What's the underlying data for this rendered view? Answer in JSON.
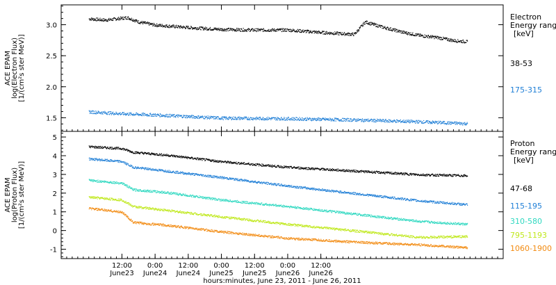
{
  "chart_data": [
    {
      "type": "scatter",
      "ylabel_lines": [
        "ACE EPAM",
        "log(Electron Flux)",
        "[1/(cm²s ster MeV)]"
      ],
      "ylim": [
        1.28,
        3.32
      ],
      "yticks": [
        1.5,
        2.0,
        2.5,
        3.0
      ],
      "ytick_labels": [
        "1.5",
        "2.0",
        "2.5",
        "3.0"
      ],
      "legend_title": [
        "Electron",
        "Energy range",
        "[keV]"
      ],
      "series": [
        {
          "name": "38-53",
          "color": "#000000",
          "points": [
            [
              0,
              3.1
            ],
            [
              6,
              3.08
            ],
            [
              14,
              3.12
            ],
            [
              18,
              3.05
            ],
            [
              24,
              3.0
            ],
            [
              36,
              2.96
            ],
            [
              48,
              2.93
            ],
            [
              60,
              2.92
            ],
            [
              72,
              2.92
            ],
            [
              84,
              2.88
            ],
            [
              96,
              2.85
            ],
            [
              100,
              3.05
            ],
            [
              106,
              2.97
            ],
            [
              114,
              2.88
            ],
            [
              120,
              2.83
            ],
            [
              126,
              2.8
            ],
            [
              132,
              2.75
            ],
            [
              137,
              2.73
            ]
          ]
        },
        {
          "name": "175-315",
          "color": "#1e7ed6",
          "points": [
            [
              0,
              1.6
            ],
            [
              12,
              1.57
            ],
            [
              24,
              1.55
            ],
            [
              48,
              1.5
            ],
            [
              72,
              1.49
            ],
            [
              96,
              1.47
            ],
            [
              120,
              1.44
            ],
            [
              137,
              1.41
            ]
          ]
        }
      ]
    },
    {
      "type": "scatter",
      "ylabel_lines": [
        "ACE EPAM",
        "log(Proton Flux)",
        "[1/(cm²s ster MeV)]"
      ],
      "ylim": [
        -1.5,
        5.3
      ],
      "yticks": [
        -1,
        0,
        1,
        2,
        3,
        4,
        5
      ],
      "ytick_labels": [
        "-1",
        "0",
        "1",
        "2",
        "3",
        "4",
        "5"
      ],
      "legend_title": [
        "Proton",
        "Energy range",
        "[keV]"
      ],
      "series": [
        {
          "name": "47-68",
          "color": "#000000",
          "points": [
            [
              0,
              4.5
            ],
            [
              12,
              4.4
            ],
            [
              16,
              4.2
            ],
            [
              28,
              4.05
            ],
            [
              48,
              3.7
            ],
            [
              72,
              3.4
            ],
            [
              96,
              3.2
            ],
            [
              120,
              3.0
            ],
            [
              137,
              2.95
            ]
          ]
        },
        {
          "name": "115-195",
          "color": "#1e7ed6",
          "points": [
            [
              0,
              3.85
            ],
            [
              12,
              3.7
            ],
            [
              16,
              3.4
            ],
            [
              28,
              3.2
            ],
            [
              48,
              2.85
            ],
            [
              72,
              2.4
            ],
            [
              96,
              2.0
            ],
            [
              120,
              1.6
            ],
            [
              137,
              1.4
            ]
          ]
        },
        {
          "name": "310-580",
          "color": "#2ed8c0",
          "points": [
            [
              0,
              2.7
            ],
            [
              12,
              2.55
            ],
            [
              16,
              2.2
            ],
            [
              28,
              2.05
            ],
            [
              48,
              1.65
            ],
            [
              72,
              1.3
            ],
            [
              96,
              0.9
            ],
            [
              120,
              0.5
            ],
            [
              137,
              0.35
            ]
          ]
        },
        {
          "name": "795-1193",
          "color": "#bfe81a",
          "points": [
            [
              0,
              1.8
            ],
            [
              12,
              1.65
            ],
            [
              16,
              1.3
            ],
            [
              28,
              1.1
            ],
            [
              48,
              0.75
            ],
            [
              72,
              0.35
            ],
            [
              96,
              0.0
            ],
            [
              120,
              -0.35
            ],
            [
              137,
              -0.3
            ]
          ]
        },
        {
          "name": "1060-1900",
          "color": "#f28a10",
          "points": [
            [
              0,
              1.2
            ],
            [
              12,
              1.0
            ],
            [
              16,
              0.45
            ],
            [
              28,
              0.3
            ],
            [
              48,
              -0.05
            ],
            [
              72,
              -0.4
            ],
            [
              96,
              -0.6
            ],
            [
              120,
              -0.75
            ],
            [
              137,
              -0.9
            ]
          ]
        }
      ]
    }
  ],
  "xaxis": {
    "ticks": [
      {
        "top": "12:00",
        "bottom": "June23"
      },
      {
        "top": "0:00",
        "bottom": "June24"
      },
      {
        "top": "12:00",
        "bottom": "June24"
      },
      {
        "top": "0:00",
        "bottom": "June25"
      },
      {
        "top": "12:00",
        "bottom": "June25"
      },
      {
        "top": "0:00",
        "bottom": "June26"
      },
      {
        "top": "12:00",
        "bottom": "June26"
      }
    ],
    "label": "hours:minutes, June 23, 2011 - June 26, 2011"
  }
}
